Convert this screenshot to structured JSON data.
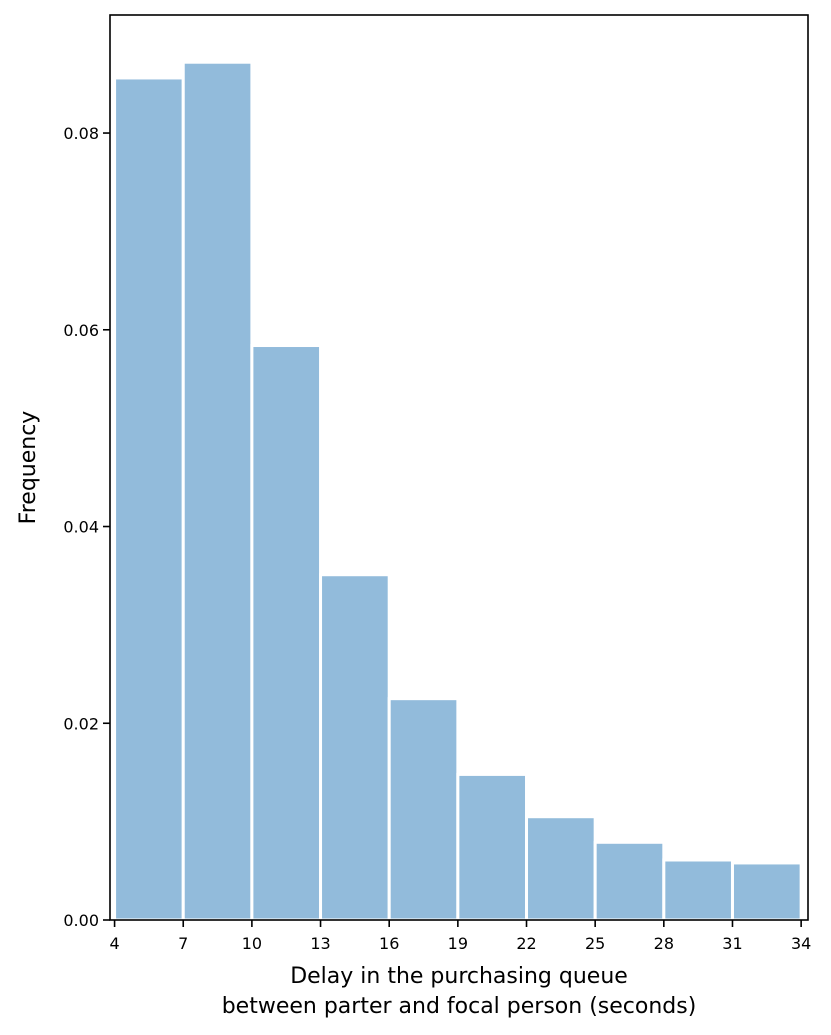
{
  "chart_data": {
    "type": "bar",
    "title": "",
    "xlabel_lines": [
      "Delay in the purchasing queue",
      "between parter and focal person (seconds)"
    ],
    "ylabel": "Frequency",
    "bins": [
      {
        "start": 4,
        "end": 7,
        "value": 0.0856
      },
      {
        "start": 7,
        "end": 10,
        "value": 0.0872
      },
      {
        "start": 10,
        "end": 13,
        "value": 0.0584
      },
      {
        "start": 13,
        "end": 16,
        "value": 0.0351
      },
      {
        "start": 16,
        "end": 19,
        "value": 0.0225
      },
      {
        "start": 19,
        "end": 22,
        "value": 0.0148
      },
      {
        "start": 22,
        "end": 25,
        "value": 0.0105
      },
      {
        "start": 25,
        "end": 28,
        "value": 0.0079
      },
      {
        "start": 28,
        "end": 31,
        "value": 0.0061
      },
      {
        "start": 31,
        "end": 34,
        "value": 0.0058
      }
    ],
    "xlim": [
      3.8,
      34.3
    ],
    "ylim": [
      0,
      0.092
    ],
    "x_ticks": [
      4,
      7,
      10,
      13,
      16,
      19,
      22,
      25,
      28,
      31,
      34
    ],
    "y_ticks": [
      0.0,
      0.02,
      0.04,
      0.06,
      0.08
    ],
    "y_tick_labels": [
      "0.00",
      "0.02",
      "0.04",
      "0.06",
      "0.08"
    ],
    "grid": false,
    "legend": "none",
    "bar_color": "#92bbdb",
    "bar_edge_color": "#ffffff"
  }
}
